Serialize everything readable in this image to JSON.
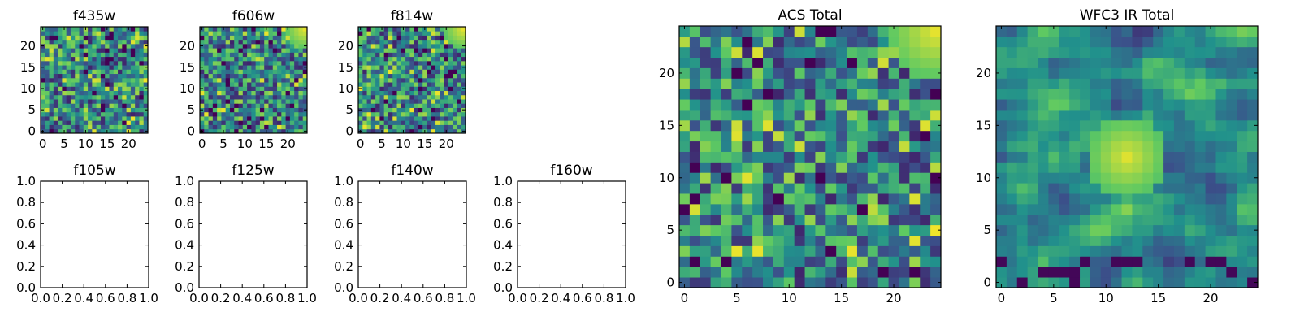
{
  "colormap": {
    "name": "viridis",
    "stops": [
      "#440154",
      "#3b528b",
      "#21918c",
      "#5ec962",
      "#fde725"
    ]
  },
  "chart_data": [
    {
      "id": "f435w",
      "type": "heatmap",
      "title": "f435w",
      "grid_size": 25,
      "xlim": [
        -0.5,
        24.5
      ],
      "ylim": [
        -0.5,
        24.5
      ],
      "xticks": [
        0,
        5,
        10,
        15,
        20
      ],
      "yticks": [
        0,
        5,
        10,
        15,
        20
      ],
      "xtick_labels": [
        "0",
        "5",
        "10",
        "15",
        "20"
      ],
      "ytick_labels": [
        "0",
        "5",
        "10",
        "15",
        "20"
      ],
      "texture": "noisy",
      "bright_corner": "none",
      "bright_region": "none",
      "seed": 11
    },
    {
      "id": "f606w",
      "type": "heatmap",
      "title": "f606w",
      "grid_size": 25,
      "xlim": [
        -0.5,
        24.5
      ],
      "ylim": [
        -0.5,
        24.5
      ],
      "xticks": [
        0,
        5,
        10,
        15,
        20
      ],
      "yticks": [
        0,
        5,
        10,
        15,
        20
      ],
      "xtick_labels": [
        "0",
        "5",
        "10",
        "15",
        "20"
      ],
      "ytick_labels": [
        "0",
        "5",
        "10",
        "15",
        "20"
      ],
      "texture": "noisy",
      "bright_corner": "top-right",
      "bright_region": "none",
      "seed": 23
    },
    {
      "id": "f814w",
      "type": "heatmap",
      "title": "f814w",
      "grid_size": 25,
      "xlim": [
        -0.5,
        24.5
      ],
      "ylim": [
        -0.5,
        24.5
      ],
      "xticks": [
        0,
        5,
        10,
        15,
        20
      ],
      "yticks": [
        0,
        5,
        10,
        15,
        20
      ],
      "xtick_labels": [
        "0",
        "5",
        "10",
        "15",
        "20"
      ],
      "ytick_labels": [
        "0",
        "5",
        "10",
        "15",
        "20"
      ],
      "texture": "noisy",
      "bright_corner": "top-right",
      "bright_region": "none",
      "seed": 37
    },
    {
      "id": "f105w",
      "type": "empty",
      "title": "f105w",
      "xlim": [
        0,
        1
      ],
      "ylim": [
        0,
        1
      ],
      "xticks": [
        0.0,
        0.2,
        0.4,
        0.6,
        0.8,
        1.0
      ],
      "yticks": [
        0.0,
        0.2,
        0.4,
        0.6,
        0.8,
        1.0
      ],
      "xtick_labels": [
        "0.0",
        "0.2",
        "0.4",
        "0.6",
        "0.8",
        "1.0"
      ],
      "ytick_labels": [
        "0.0",
        "0.2",
        "0.4",
        "0.6",
        "0.8",
        "1.0"
      ]
    },
    {
      "id": "f125w",
      "type": "empty",
      "title": "f125w",
      "xlim": [
        0,
        1
      ],
      "ylim": [
        0,
        1
      ],
      "xticks": [
        0.0,
        0.2,
        0.4,
        0.6,
        0.8,
        1.0
      ],
      "yticks": [
        0.0,
        0.2,
        0.4,
        0.6,
        0.8,
        1.0
      ],
      "xtick_labels": [
        "0.0",
        "0.2",
        "0.4",
        "0.6",
        "0.8",
        "1.0"
      ],
      "ytick_labels": [
        "0.0",
        "0.2",
        "0.4",
        "0.6",
        "0.8",
        "1.0"
      ]
    },
    {
      "id": "f140w",
      "type": "empty",
      "title": "f140w",
      "xlim": [
        0,
        1
      ],
      "ylim": [
        0,
        1
      ],
      "xticks": [
        0.0,
        0.2,
        0.4,
        0.6,
        0.8,
        1.0
      ],
      "yticks": [
        0.0,
        0.2,
        0.4,
        0.6,
        0.8,
        1.0
      ],
      "xtick_labels": [
        "0.0",
        "0.2",
        "0.4",
        "0.6",
        "0.8",
        "1.0"
      ],
      "ytick_labels": [
        "0.0",
        "0.2",
        "0.4",
        "0.6",
        "0.8",
        "1.0"
      ]
    },
    {
      "id": "f160w",
      "type": "empty",
      "title": "f160w",
      "xlim": [
        0,
        1
      ],
      "ylim": [
        0,
        1
      ],
      "xticks": [
        0.0,
        0.2,
        0.4,
        0.6,
        0.8,
        1.0
      ],
      "yticks": [
        0.0,
        0.2,
        0.4,
        0.6,
        0.8,
        1.0
      ],
      "xtick_labels": [
        "0.0",
        "0.2",
        "0.4",
        "0.6",
        "0.8",
        "1.0"
      ],
      "ytick_labels": [
        "0.0",
        "0.2",
        "0.4",
        "0.6",
        "0.8",
        "1.0"
      ]
    },
    {
      "id": "acs-total",
      "type": "heatmap",
      "title": "ACS Total",
      "grid_size": 25,
      "xlim": [
        -0.5,
        24.5
      ],
      "ylim": [
        -0.5,
        24.5
      ],
      "xticks": [
        0,
        5,
        10,
        15,
        20
      ],
      "yticks": [
        0,
        5,
        10,
        15,
        20
      ],
      "xtick_labels": [
        "0",
        "5",
        "10",
        "15",
        "20"
      ],
      "ytick_labels": [
        "0",
        "5",
        "10",
        "15",
        "20"
      ],
      "texture": "noisy",
      "bright_corner": "top-right",
      "bright_region": "none",
      "seed": 53
    },
    {
      "id": "wfc3-ir-total",
      "type": "heatmap",
      "title": "WFC3 IR Total",
      "grid_size": 25,
      "xlim": [
        -0.5,
        24.5
      ],
      "ylim": [
        -0.5,
        24.5
      ],
      "xticks": [
        0,
        5,
        10,
        15,
        20
      ],
      "yticks": [
        0,
        5,
        10,
        15,
        20
      ],
      "xtick_labels": [
        "0",
        "5",
        "10",
        "15",
        "20"
      ],
      "ytick_labels": [
        "0",
        "5",
        "10",
        "15",
        "20"
      ],
      "texture": "smooth",
      "bright_corner": "none",
      "bright_region": "center",
      "seed": 71
    }
  ]
}
